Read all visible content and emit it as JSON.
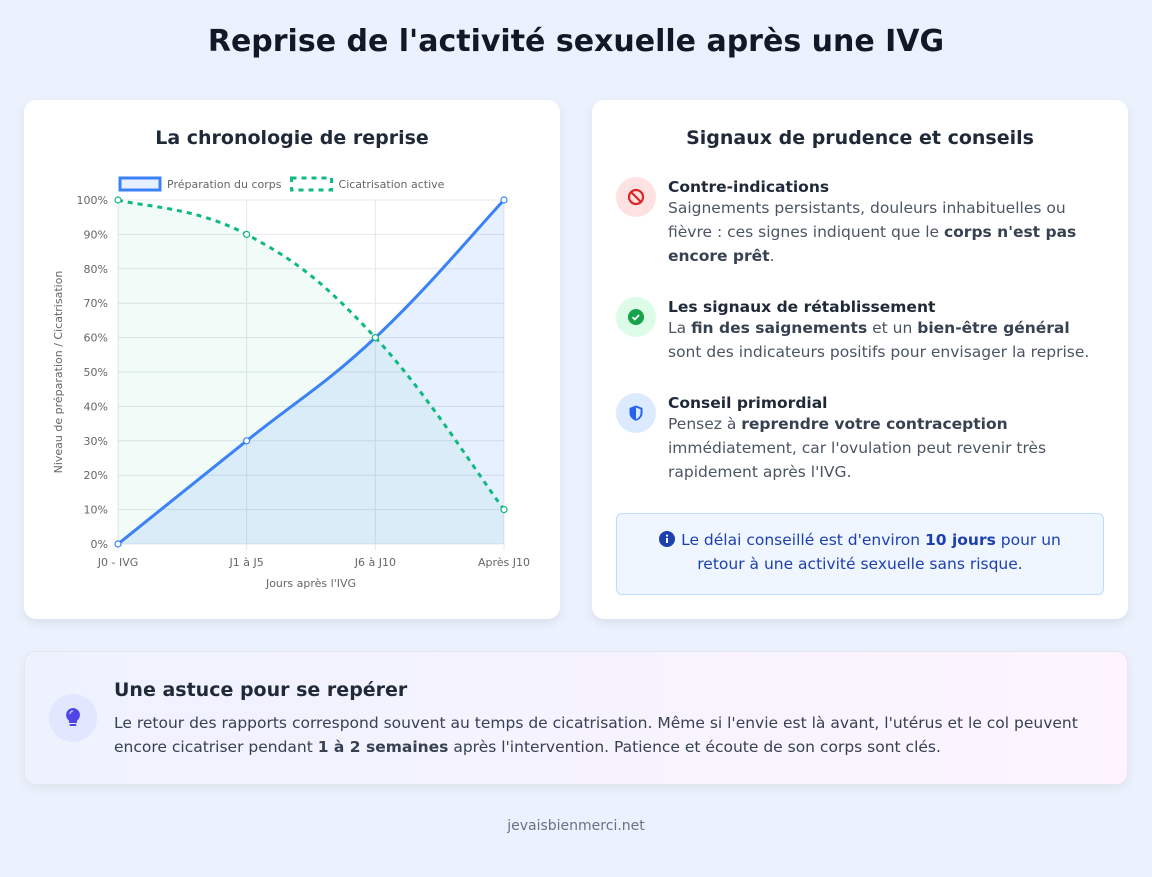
{
  "title": "Reprise de l'activité sexuelle après une IVG",
  "chart_card": {
    "title": "La chronologie de reprise"
  },
  "chart_data": {
    "type": "line",
    "categories": [
      "J0 - IVG",
      "J1 à J5",
      "J6 à J10",
      "Après J10"
    ],
    "series": [
      {
        "name": "Préparation du corps",
        "values": [
          0,
          30,
          60,
          100
        ],
        "color": "#3b82f6",
        "style": "solid",
        "fill": true
      },
      {
        "name": "Cicatrisation active",
        "values": [
          100,
          90,
          60,
          10
        ],
        "color": "#10b981",
        "style": "dashed",
        "fill": true
      }
    ],
    "xlabel": "Jours après l'IVG",
    "ylabel": "Niveau de préparation / Cicatrisation",
    "ylim": [
      0,
      100
    ],
    "yticks": [
      "0%",
      "10%",
      "20%",
      "30%",
      "40%",
      "50%",
      "60%",
      "70%",
      "80%",
      "90%",
      "100%"
    ],
    "grid": true,
    "legend": "top"
  },
  "signals": {
    "title": "Signaux de prudence et conseils",
    "items": [
      {
        "icon": "ban-icon",
        "title": "Contre-indications",
        "parts": [
          "Saignements persistants, douleurs inhabituelles ou fièvre : ces signes indiquent que le ",
          "corps n'est pas encore prêt",
          "."
        ]
      },
      {
        "icon": "check-circle-icon",
        "title": "Les signaux de rétablissement",
        "parts": [
          "La ",
          "fin des saignements",
          " et un ",
          "bien-être général",
          " sont des indicateurs positifs pour envisager la reprise."
        ]
      },
      {
        "icon": "shield-icon",
        "title": "Conseil primordial",
        "parts": [
          "Pensez à ",
          "reprendre votre contraception",
          " immédiatement, car l'ovulation peut revenir très rapidement après l'IVG."
        ]
      }
    ],
    "info": [
      "Le délai conseillé est d'environ ",
      "10 jours",
      " pour un retour à une activité sexuelle sans risque."
    ]
  },
  "tip": {
    "title": "Une astuce pour se repérer",
    "parts": [
      "Le retour des rapports correspond souvent au temps de cicatrisation. Même si l'envie est là avant, l'utérus et le col peuvent encore cicatriser pendant ",
      "1 à 2 semaines",
      " après l'intervention. Patience et écoute de son corps sont clés."
    ]
  },
  "footer": "jevaisbienmerci.net",
  "colors": {
    "accent_blue": "#3b82f6",
    "accent_green": "#10b981",
    "danger": "#dc2626",
    "success": "#16a34a",
    "info": "#1e40af",
    "tip_icon": "#4f46e5"
  }
}
